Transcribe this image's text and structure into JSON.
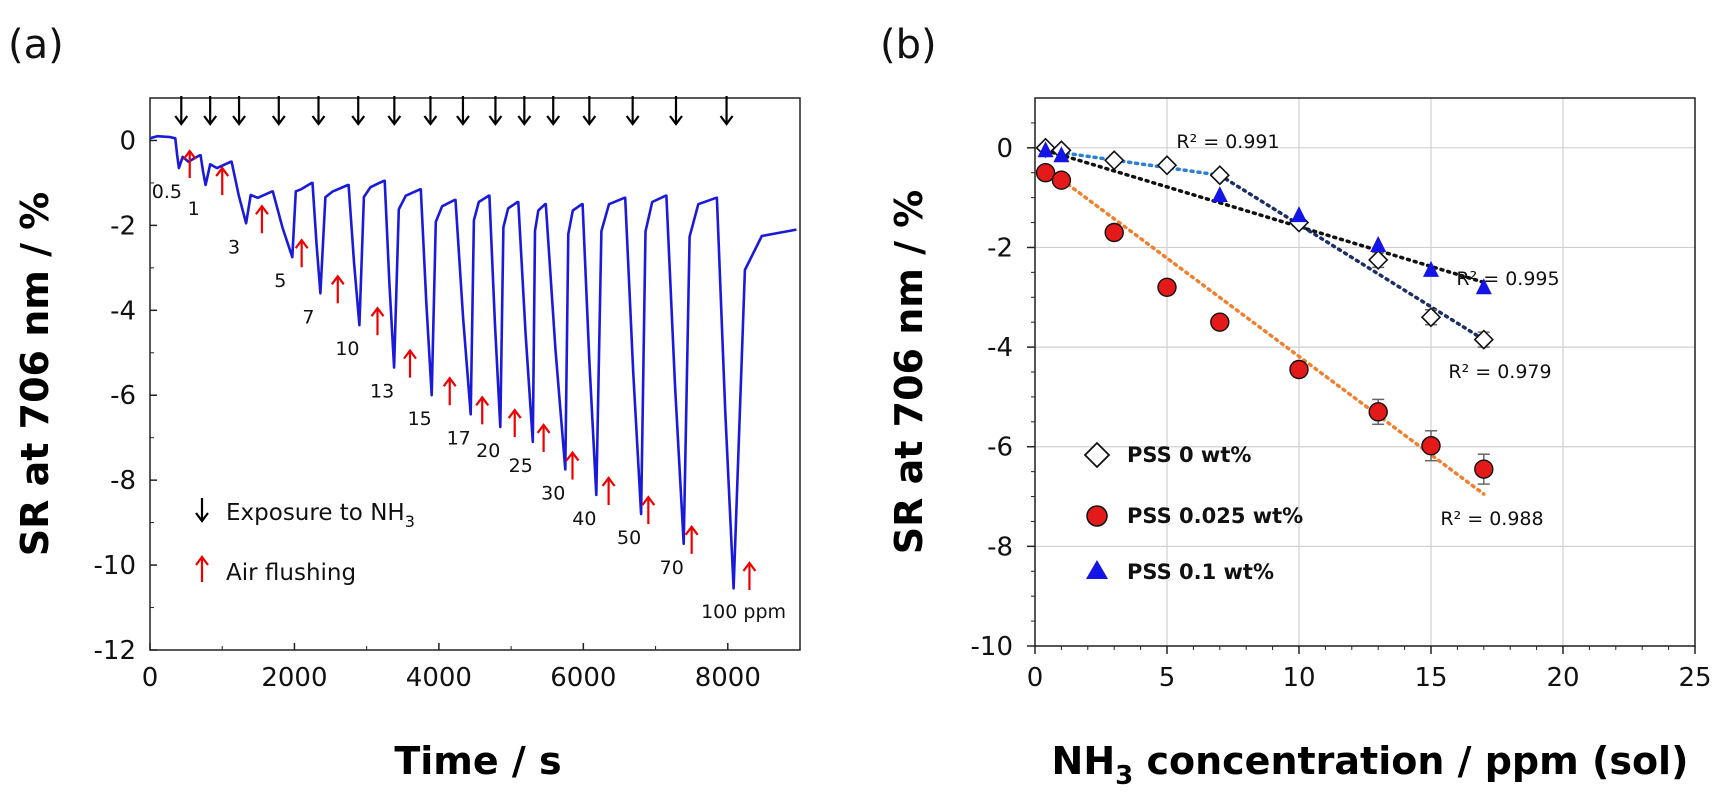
{
  "chart_data": [
    {
      "panel": "(a)",
      "type": "line",
      "xlabel": "Time / s",
      "ylabel": "SR at 706 nm / %",
      "xlim": [
        0,
        9000
      ],
      "ylim": [
        -12,
        1
      ],
      "xticks": [
        0,
        2000,
        4000,
        6000,
        8000
      ],
      "yticks": [
        0,
        -2,
        -4,
        -6,
        -8,
        -10,
        -12
      ],
      "color": "#1a1adb",
      "cycles": [
        {
          "label": "0.5",
          "start": 350,
          "min_t": 400,
          "min": -0.65,
          "base": -0.35
        },
        {
          "label": "1",
          "start": 700,
          "min_t": 770,
          "min": -1.05,
          "base": -0.5
        },
        {
          "label": "3",
          "start": 1130,
          "min_t": 1330,
          "min": -1.95,
          "base": -1.2
        },
        {
          "label": "5",
          "start": 1700,
          "min_t": 1970,
          "min": -2.75,
          "base": -1.0
        },
        {
          "label": "7",
          "start": 2250,
          "min_t": 2360,
          "min": -3.6,
          "base": -1.05
        },
        {
          "label": "10",
          "start": 2750,
          "min_t": 2900,
          "min": -4.35,
          "base": -0.95
        },
        {
          "label": "13",
          "start": 3250,
          "min_t": 3380,
          "min": -5.35,
          "base": -1.15
        },
        {
          "label": "15",
          "start": 3750,
          "min_t": 3900,
          "min": -6.0,
          "base": -1.4
        },
        {
          "label": "17",
          "start": 4230,
          "min_t": 4440,
          "min": -6.45,
          "base": -1.3
        },
        {
          "label": "20",
          "start": 4700,
          "min_t": 4850,
          "min": -6.75,
          "base": -1.45
        },
        {
          "label": "25",
          "start": 5100,
          "min_t": 5300,
          "min": -7.1,
          "base": -1.5
        },
        {
          "label": "30",
          "start": 5480,
          "min_t": 5750,
          "min": -7.75,
          "base": -1.5
        },
        {
          "label": "40",
          "start": 5990,
          "min_t": 6180,
          "min": -8.35,
          "base": -1.35
        },
        {
          "label": "50",
          "start": 6580,
          "min_t": 6800,
          "min": -8.8,
          "base": -1.3
        },
        {
          "label": "70",
          "start": 7150,
          "min_t": 7390,
          "min": -9.5,
          "base": -1.35
        },
        {
          "label": "100 ppm",
          "start": 7850,
          "min_t": 8080,
          "min": -10.55,
          "base": -2.1
        }
      ],
      "exposure_times": [
        350,
        750,
        1150,
        1700,
        2250,
        2800,
        3300,
        3800,
        4250,
        4700,
        5100,
        5500,
        6000,
        6600,
        7200,
        7900
      ],
      "flush_times": [
        550,
        1000,
        1550,
        2100,
        2600,
        3150,
        3600,
        4150,
        4600,
        5050,
        5450,
        5850,
        6350,
        6900,
        7500,
        8300
      ],
      "legend": [
        {
          "symbol": "black-down-arrow",
          "text": "Exposure to NH",
          "sub": "3"
        },
        {
          "symbol": "red-up-arrow",
          "text": "Air flushing"
        }
      ]
    },
    {
      "panel": "(b)",
      "type": "scatter",
      "xlabel_main": "NH",
      "xlabel_sub": "3",
      "xlabel_rest": " concentration / ppm (sol)",
      "ylabel": "SR at 706 nm / %",
      "xlim": [
        0,
        25
      ],
      "ylim": [
        -10,
        1
      ],
      "xticks": [
        0,
        5,
        10,
        15,
        20,
        25
      ],
      "yticks": [
        0,
        -2,
        -4,
        -6,
        -8,
        -10
      ],
      "grid": true,
      "series": [
        {
          "name": "PSS 0 wt%",
          "marker": "diamond",
          "color": "#ffffff",
          "x": [
            0.4,
            1,
            3,
            5,
            7,
            10,
            13,
            15,
            17
          ],
          "y": [
            0.0,
            -0.05,
            -0.25,
            -0.35,
            -0.55,
            -1.5,
            -2.25,
            -3.4,
            -3.85
          ],
          "err": [
            0,
            0,
            0,
            0,
            0,
            0,
            0.15,
            0.15,
            0.15
          ]
        },
        {
          "name": "PSS 0.025 wt%",
          "marker": "circle",
          "color": "#e41a1a",
          "x": [
            0.4,
            1,
            3,
            5,
            7,
            10,
            13,
            15,
            17
          ],
          "y": [
            -0.5,
            -0.65,
            -1.7,
            -2.8,
            -3.5,
            -4.45,
            -5.3,
            -5.98,
            -6.45
          ],
          "err": [
            0,
            0,
            0,
            0,
            0.12,
            0.15,
            0.25,
            0.3,
            0.3
          ]
        },
        {
          "name": "PSS 0.1 wt%",
          "marker": "triangle",
          "color": "#1414e6",
          "x": [
            0.4,
            1,
            7,
            10,
            13,
            15,
            17
          ],
          "y": [
            -0.05,
            -0.15,
            -0.95,
            -1.35,
            -1.95,
            -2.45,
            -2.8
          ],
          "err": [
            0,
            0,
            0,
            0,
            0,
            0,
            0
          ]
        }
      ],
      "fits": [
        {
          "label": "R² = 0.991",
          "color": "#2e7fd0",
          "x0": 0.4,
          "y0": -0.05,
          "x1": 7,
          "y1": -0.55
        },
        {
          "label": "R² = 0.995",
          "color": "#111111",
          "x0": 0.4,
          "y0": -0.05,
          "x1": 17,
          "y1": -2.7
        },
        {
          "label": "R² = 0.979",
          "color": "#1c2e66",
          "x0": 7,
          "y0": -0.55,
          "x1": 17,
          "y1": -3.85
        },
        {
          "label": "R² = 0.988",
          "color": "#f08030",
          "x0": 0.4,
          "y0": -0.4,
          "x1": 17,
          "y1": -6.95
        }
      ]
    }
  ]
}
